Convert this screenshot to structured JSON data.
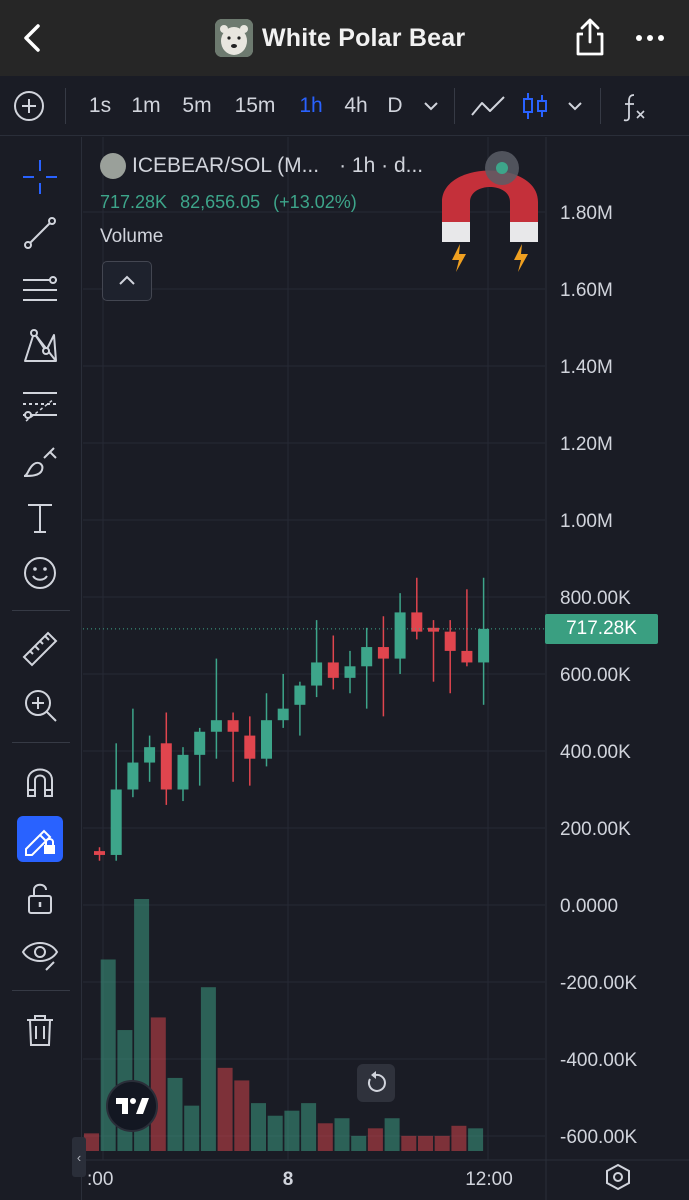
{
  "header": {
    "title": "White Polar Bear",
    "avatar_icon": "polar-bear-avatar",
    "back_icon": "chevron-left-icon",
    "share_icon": "share-icon",
    "more_icon": "more-dots-icon"
  },
  "toolbar": {
    "add_icon": "plus-circle-icon",
    "intervals": [
      "1s",
      "1m",
      "5m",
      "15m",
      "1h",
      "4h",
      "D"
    ],
    "active_interval": "1h",
    "chart_type_icons": [
      "line-chart-icon",
      "candlestick-icon"
    ],
    "indicators_icon": "fx-icon",
    "colors": {
      "active": "#2962ff"
    }
  },
  "left_tools": [
    "crosshair-icon",
    "trendline-icon",
    "pitchfork-icon",
    "pattern-icon",
    "projection-icon",
    "brush-icon",
    "text-icon",
    "emoji-icon",
    "ruler-icon",
    "zoom-in-icon",
    "magnet-icon",
    "lock-drawing-icon",
    "unlock-icon",
    "eye-icon",
    "trash-icon"
  ],
  "legend": {
    "symbol": "ICEBEAR/SOL (M...",
    "interval": "· 1h · d...",
    "price": "717.28K",
    "change_abs": "82,656.05",
    "change_pct": "(+13.02%)",
    "volume_label": "Volume"
  },
  "price_axis": {
    "labels": [
      "1.80M",
      "1.60M",
      "1.40M",
      "1.20M",
      "1.00M",
      "800.00K",
      "600.00K",
      "400.00K",
      "200.00K",
      "0.0000",
      "-200.00K",
      "-400.00K",
      "-600.00K"
    ],
    "current": "717.28K"
  },
  "time_axis": {
    "labels": [
      ":00",
      "8",
      "12:00"
    ]
  },
  "colors": {
    "up": "#3da58a",
    "down": "#e0454e",
    "background": "#1a1c25",
    "grid": "#262a35"
  },
  "chart_data": {
    "type": "candlestick",
    "x_unit": "hour",
    "ylim": [
      -620000,
      1920000
    ],
    "candles": [
      {
        "open": 140000,
        "high": 150000,
        "low": 115000,
        "close": 130000
      },
      {
        "open": 130000,
        "high": 420000,
        "low": 115000,
        "close": 300000
      },
      {
        "open": 300000,
        "high": 510000,
        "low": 280000,
        "close": 370000
      },
      {
        "open": 370000,
        "high": 440000,
        "low": 320000,
        "close": 410000
      },
      {
        "open": 420000,
        "high": 500000,
        "low": 260000,
        "close": 300000
      },
      {
        "open": 300000,
        "high": 410000,
        "low": 270000,
        "close": 390000
      },
      {
        "open": 390000,
        "high": 460000,
        "low": 310000,
        "close": 450000
      },
      {
        "open": 450000,
        "high": 640000,
        "low": 380000,
        "close": 480000
      },
      {
        "open": 480000,
        "high": 500000,
        "low": 320000,
        "close": 450000
      },
      {
        "open": 440000,
        "high": 490000,
        "low": 310000,
        "close": 380000
      },
      {
        "open": 380000,
        "high": 550000,
        "low": 360000,
        "close": 480000
      },
      {
        "open": 480000,
        "high": 600000,
        "low": 460000,
        "close": 510000
      },
      {
        "open": 520000,
        "high": 580000,
        "low": 440000,
        "close": 570000
      },
      {
        "open": 570000,
        "high": 740000,
        "low": 540000,
        "close": 630000
      },
      {
        "open": 630000,
        "high": 700000,
        "low": 560000,
        "close": 590000
      },
      {
        "open": 590000,
        "high": 660000,
        "low": 550000,
        "close": 620000
      },
      {
        "open": 620000,
        "high": 720000,
        "low": 510000,
        "close": 670000
      },
      {
        "open": 670000,
        "high": 750000,
        "low": 490000,
        "close": 640000
      },
      {
        "open": 640000,
        "high": 810000,
        "low": 600000,
        "close": 760000
      },
      {
        "open": 760000,
        "high": 850000,
        "low": 690000,
        "close": 710000
      },
      {
        "open": 720000,
        "high": 740000,
        "low": 580000,
        "close": 710000
      },
      {
        "open": 710000,
        "high": 740000,
        "low": 550000,
        "close": 660000
      },
      {
        "open": 660000,
        "high": 820000,
        "low": 620000,
        "close": 630000
      },
      {
        "open": 630000,
        "high": 850000,
        "low": 520000,
        "close": 717280
      }
    ],
    "volume_levels": [
      0.07,
      0.76,
      0.48,
      1.0,
      0.53,
      0.29,
      0.18,
      0.65,
      0.33,
      0.28,
      0.19,
      0.14,
      0.16,
      0.19,
      0.11,
      0.13,
      0.06,
      0.09,
      0.13,
      0.06,
      0.06,
      0.06,
      0.1,
      0.09
    ]
  }
}
